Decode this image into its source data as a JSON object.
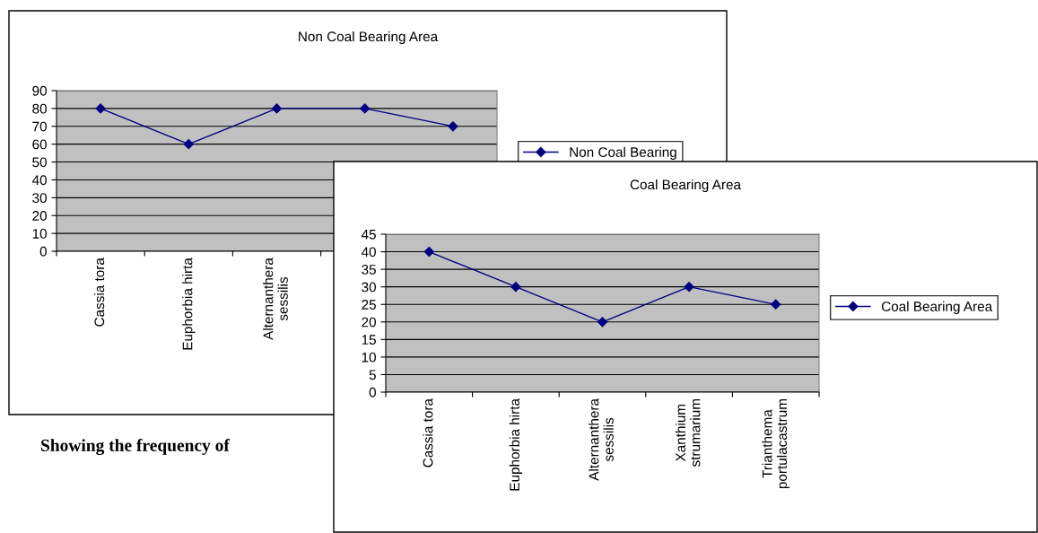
{
  "chart_data": [
    {
      "type": "line",
      "title": "Non Coal Bearing Area",
      "categories": [
        "Cassia tora",
        "Euphorbia hirta",
        "Alternanthera sessilis",
        null,
        null
      ],
      "series": [
        {
          "name": "Non Coal Bearing",
          "color": "#000080",
          "values": [
            80,
            60,
            80,
            80,
            70
          ]
        }
      ],
      "ylim": [
        0,
        90
      ],
      "yticks": [
        0,
        10,
        20,
        30,
        40,
        50,
        60,
        70,
        80,
        90
      ],
      "grid": "y",
      "legend": "right",
      "marker": "diamond",
      "line_style": "solid",
      "annotations": [
        "Showing the frequency of"
      ]
    },
    {
      "type": "line",
      "title": "Coal Bearing Area",
      "categories": [
        "Cassia tora",
        "Euphorbia hirta",
        "Alternanthera sessilis",
        "Xanthium strumarium",
        "Trianthema portulacastrum"
      ],
      "series": [
        {
          "name": "Coal Bearing Area",
          "color": "#000080",
          "values": [
            40,
            30,
            20,
            30,
            25
          ]
        }
      ],
      "ylim": [
        0,
        45
      ],
      "yticks": [
        0,
        5,
        10,
        15,
        20,
        25,
        30,
        35,
        40,
        45
      ],
      "grid": "y",
      "legend": "right",
      "marker": "diamond",
      "line_style": "solid"
    }
  ]
}
